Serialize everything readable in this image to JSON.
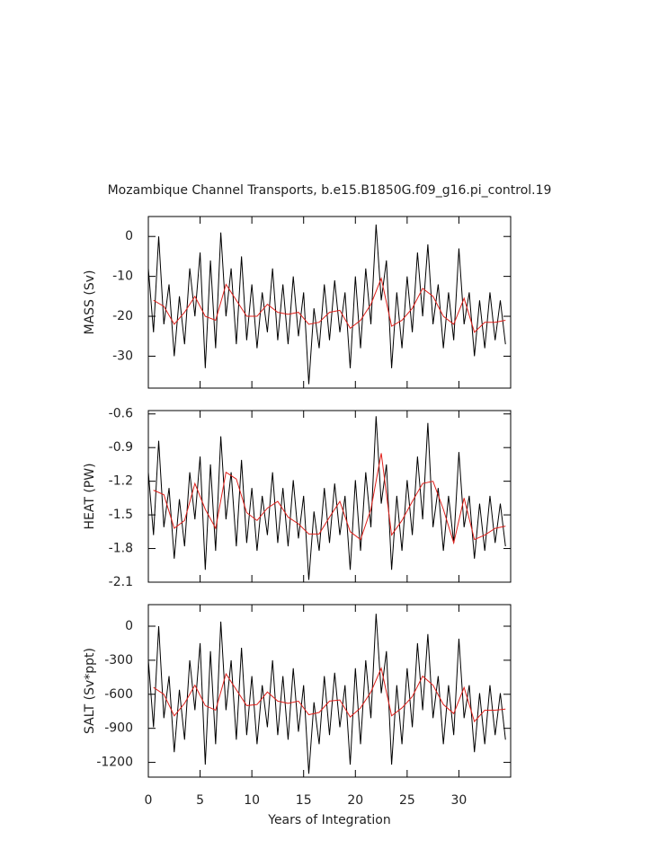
{
  "chart_data": [
    {
      "type": "line",
      "title": "Mozambique Channel Transports, b.e15.B1850G.f09_g16.pi_control.19",
      "ylabel": "MASS (Sv)",
      "xlim": [
        0,
        35
      ],
      "xticks": [
        0,
        5,
        10,
        15,
        20,
        25,
        30
      ],
      "ylim": [
        -38,
        5
      ],
      "yticks": [
        -30,
        -20,
        -10,
        0
      ],
      "series": [
        {
          "color": "#000000",
          "x": [
            0,
            0.5,
            1,
            1.5,
            2,
            2.5,
            3,
            3.5,
            4,
            4.5,
            5,
            5.5,
            6,
            6.5,
            7,
            7.5,
            8,
            8.5,
            9,
            9.5,
            10,
            10.5,
            11,
            11.5,
            12,
            12.5,
            13,
            13.5,
            14,
            14.5,
            15,
            15.5,
            16,
            16.5,
            17,
            17.5,
            18,
            18.5,
            19,
            19.5,
            20,
            20.5,
            21,
            21.5,
            22,
            22.5,
            23,
            23.5,
            24,
            24.5,
            25,
            25.5,
            26,
            26.5,
            27,
            27.5,
            28,
            28.5,
            29,
            29.5,
            30,
            30.5,
            31,
            31.5,
            32,
            32.5,
            33,
            33.5,
            34,
            34.5
          ],
          "values": [
            -8,
            -24,
            0,
            -22,
            -12,
            -30,
            -15,
            -27,
            -8,
            -20,
            -4,
            -33,
            -6,
            -28,
            1,
            -20,
            -8,
            -27,
            -5,
            -26,
            -12,
            -28,
            -14,
            -24,
            -8,
            -26,
            -12,
            -27,
            -10,
            -25,
            -14,
            -37,
            -18,
            -28,
            -12,
            -26,
            -11,
            -24,
            -14,
            -33,
            -10,
            -28,
            -8,
            -22,
            3,
            -16,
            -6,
            -33,
            -14,
            -28,
            -10,
            -24,
            -4,
            -20,
            -2,
            -22,
            -12,
            -28,
            -14,
            -26,
            -3,
            -22,
            -14,
            -30,
            -16,
            -28,
            -14,
            -26,
            -16,
            -27
          ]
        },
        {
          "color": "#e0201b",
          "x": [
            0.5,
            1.5,
            2.5,
            3.5,
            4.5,
            5.5,
            6.5,
            7.5,
            8.5,
            9.5,
            10.5,
            11.5,
            12.5,
            13.5,
            14.5,
            15.5,
            16.5,
            17.5,
            18.5,
            19.5,
            20.5,
            21.5,
            22.5,
            23.5,
            24.5,
            25.5,
            26.5,
            27.5,
            28.5,
            29.5,
            30.5,
            31.5,
            32.5,
            33.5,
            34.5
          ],
          "values": [
            -16,
            -17.5,
            -22,
            -19,
            -15,
            -20,
            -21,
            -12,
            -16,
            -20,
            -20,
            -17,
            -19,
            -19.5,
            -19,
            -22,
            -21.5,
            -19,
            -18.5,
            -23,
            -21,
            -17,
            -10.5,
            -22.5,
            -21,
            -18,
            -13,
            -15,
            -20,
            -22,
            -15.5,
            -24,
            -21.5,
            -21.5,
            -21
          ]
        }
      ]
    },
    {
      "type": "line",
      "ylabel": "HEAT (PW)",
      "xlim": [
        0,
        35
      ],
      "xticks": [
        0,
        5,
        10,
        15,
        20,
        25,
        30
      ],
      "ylim": [
        -2.1,
        -0.57
      ],
      "yticks": [
        -2.1,
        -1.8,
        -1.5,
        -1.2,
        -0.9,
        -0.6
      ],
      "series": [
        {
          "color": "#000000",
          "x": [
            0,
            0.5,
            1,
            1.5,
            2,
            2.5,
            3,
            3.5,
            4,
            4.5,
            5,
            5.5,
            6,
            6.5,
            7,
            7.5,
            8,
            8.5,
            9,
            9.5,
            10,
            10.5,
            11,
            11.5,
            12,
            12.5,
            13,
            13.5,
            14,
            14.5,
            15,
            15.5,
            16,
            16.5,
            17,
            17.5,
            18,
            18.5,
            19,
            19.5,
            20,
            20.5,
            21,
            21.5,
            22,
            22.5,
            23,
            23.5,
            24,
            24.5,
            25,
            25.5,
            26,
            26.5,
            27,
            27.5,
            28,
            28.5,
            29,
            29.5,
            30,
            30.5,
            31,
            31.5,
            32,
            32.5,
            33,
            33.5,
            34,
            34.5
          ],
          "values": [
            -1.12,
            -1.68,
            -0.84,
            -1.61,
            -1.26,
            -1.89,
            -1.36,
            -1.78,
            -1.12,
            -1.54,
            -0.98,
            -1.99,
            -1.05,
            -1.82,
            -0.8,
            -1.54,
            -1.12,
            -1.78,
            -1.01,
            -1.75,
            -1.26,
            -1.82,
            -1.33,
            -1.68,
            -1.12,
            -1.75,
            -1.26,
            -1.78,
            -1.19,
            -1.71,
            -1.33,
            -2.08,
            -1.47,
            -1.82,
            -1.26,
            -1.75,
            -1.22,
            -1.68,
            -1.33,
            -1.99,
            -1.19,
            -1.82,
            -1.12,
            -1.61,
            -0.62,
            -1.4,
            -1.05,
            -1.99,
            -1.33,
            -1.82,
            -1.19,
            -1.68,
            -0.98,
            -1.54,
            -0.68,
            -1.61,
            -1.26,
            -1.82,
            -1.33,
            -1.75,
            -0.94,
            -1.61,
            -1.33,
            -1.89,
            -1.4,
            -1.82,
            -1.33,
            -1.75,
            -1.4,
            -1.78
          ]
        },
        {
          "color": "#e0201b",
          "x": [
            0.5,
            1.5,
            2.5,
            3.5,
            4.5,
            5.5,
            6.5,
            7.5,
            8.5,
            9.5,
            10.5,
            11.5,
            12.5,
            13.5,
            14.5,
            15.5,
            16.5,
            17.5,
            18.5,
            19.5,
            20.5,
            21.5,
            22.5,
            23.5,
            24.5,
            25.5,
            26.5,
            27.5,
            28.5,
            29.5,
            30.5,
            31.5,
            32.5,
            33.5,
            34.5
          ],
          "values": [
            -1.28,
            -1.32,
            -1.62,
            -1.55,
            -1.22,
            -1.45,
            -1.62,
            -1.12,
            -1.18,
            -1.48,
            -1.55,
            -1.44,
            -1.38,
            -1.52,
            -1.58,
            -1.67,
            -1.67,
            -1.52,
            -1.38,
            -1.65,
            -1.72,
            -1.45,
            -0.95,
            -1.68,
            -1.55,
            -1.38,
            -1.22,
            -1.2,
            -1.45,
            -1.75,
            -1.35,
            -1.72,
            -1.68,
            -1.62,
            -1.6
          ]
        }
      ]
    },
    {
      "type": "line",
      "ylabel": "SALT (Sv*ppt)",
      "xlabel": "Years of Integration",
      "xlim": [
        0,
        35
      ],
      "xticks": [
        0,
        5,
        10,
        15,
        20,
        25,
        30
      ],
      "ylim": [
        -1330,
        190
      ],
      "yticks": [
        -1200,
        -900,
        -600,
        -300,
        0
      ],
      "series": [
        {
          "color": "#000000",
          "x": [
            0,
            0.5,
            1,
            1.5,
            2,
            2.5,
            3,
            3.5,
            4,
            4.5,
            5,
            5.5,
            6,
            6.5,
            7,
            7.5,
            8,
            8.5,
            9,
            9.5,
            10,
            10.5,
            11,
            11.5,
            12,
            12.5,
            13,
            13.5,
            14,
            14.5,
            15,
            15.5,
            16,
            16.5,
            17,
            17.5,
            18,
            18.5,
            19,
            19.5,
            20,
            20.5,
            21,
            21.5,
            22,
            22.5,
            23,
            23.5,
            24,
            24.5,
            25,
            25.5,
            26,
            26.5,
            27,
            27.5,
            28,
            28.5,
            29,
            29.5,
            30,
            30.5,
            31,
            31.5,
            32,
            32.5,
            33,
            33.5,
            34,
            34.5
          ],
          "values": [
            -300,
            -890,
            0,
            -810,
            -440,
            -1110,
            -560,
            -1000,
            -300,
            -740,
            -150,
            -1220,
            -220,
            -1040,
            40,
            -740,
            -300,
            -1000,
            -190,
            -960,
            -440,
            -1040,
            -520,
            -890,
            -300,
            -960,
            -440,
            -1000,
            -370,
            -930,
            -520,
            -1300,
            -670,
            -1040,
            -440,
            -960,
            -410,
            -890,
            -520,
            -1220,
            -370,
            -1040,
            -300,
            -810,
            110,
            -590,
            -220,
            -1220,
            -520,
            -1040,
            -370,
            -890,
            -150,
            -740,
            -70,
            -810,
            -440,
            -1040,
            -520,
            -960,
            -110,
            -810,
            -520,
            -1110,
            -590,
            -1040,
            -520,
            -960,
            -590,
            -1000
          ]
        },
        {
          "color": "#e0201b",
          "x": [
            0.5,
            1.5,
            2.5,
            3.5,
            4.5,
            5.5,
            6.5,
            7.5,
            8.5,
            9.5,
            10.5,
            11.5,
            12.5,
            13.5,
            14.5,
            15.5,
            16.5,
            17.5,
            18.5,
            19.5,
            20.5,
            21.5,
            22.5,
            23.5,
            24.5,
            25.5,
            26.5,
            27.5,
            28.5,
            29.5,
            30.5,
            31.5,
            32.5,
            33.5,
            34.5
          ],
          "values": [
            -540,
            -600,
            -790,
            -680,
            -520,
            -700,
            -740,
            -420,
            -560,
            -700,
            -690,
            -580,
            -660,
            -680,
            -660,
            -780,
            -760,
            -660,
            -650,
            -800,
            -720,
            -580,
            -370,
            -790,
            -720,
            -620,
            -440,
            -520,
            -690,
            -770,
            -540,
            -840,
            -740,
            -740,
            -730
          ]
        }
      ]
    }
  ]
}
